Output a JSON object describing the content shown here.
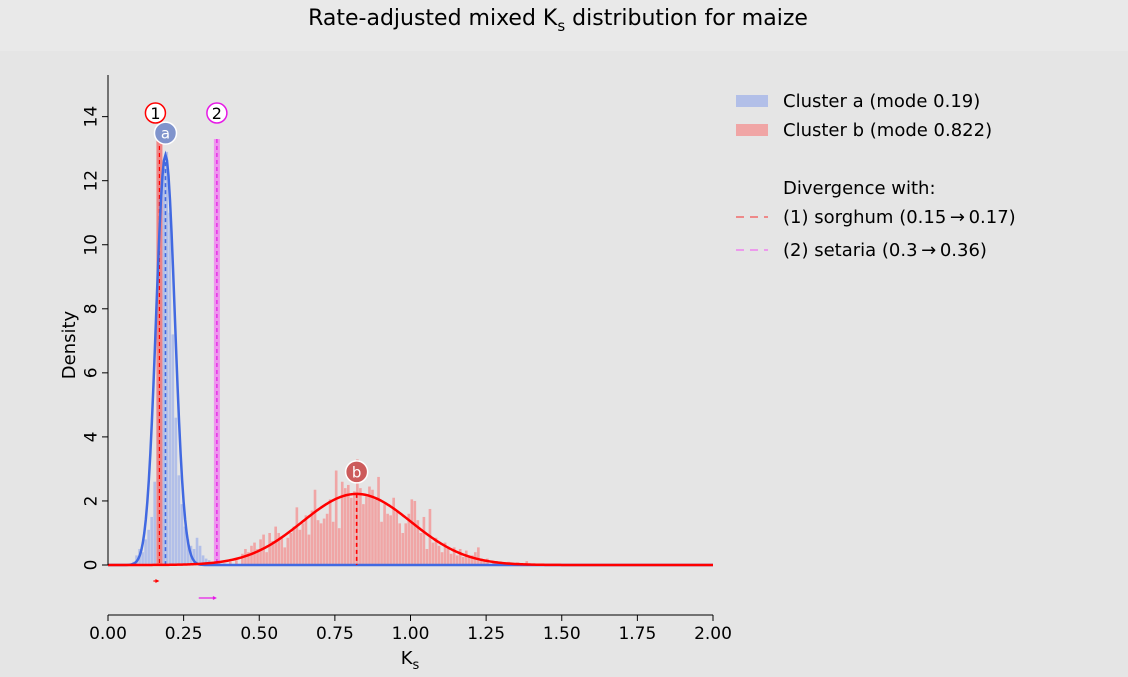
{
  "chart_data": {
    "type": "histogram",
    "title": {
      "main": "Rate-adjusted mixed K",
      "sub": "s",
      "rest": " distribution for maize"
    },
    "xlabel": {
      "main": "K",
      "sub": "s"
    },
    "ylabel": "Density",
    "xlim": [
      0,
      2
    ],
    "ylim": [
      0,
      15.3
    ],
    "xticks": [
      "0.00",
      "0.25",
      "0.50",
      "0.75",
      "1.00",
      "1.25",
      "1.50",
      "1.75",
      "2.00"
    ],
    "yticks": [
      "0",
      "2",
      "4",
      "6",
      "8",
      "10",
      "12",
      "14"
    ],
    "grid": false,
    "legend_position": "right-outside",
    "clusters": [
      {
        "id": "a",
        "legend_label": "Cluster a (mode 0.19)",
        "mode": 0.19,
        "curve_color": "#4169e1",
        "fill_color": "#b2bfe8",
        "marker_color": "#8094cc",
        "curve": {
          "mean": 0.19,
          "sd": 0.031,
          "peak": 12.8
        },
        "histogram": {
          "bin_width": 0.01,
          "bins": [
            [
              0.08,
              0.1
            ],
            [
              0.09,
              0.3
            ],
            [
              0.1,
              0.5
            ],
            [
              0.11,
              0.4
            ],
            [
              0.12,
              0.8
            ],
            [
              0.13,
              1.1
            ],
            [
              0.14,
              1.5
            ],
            [
              0.15,
              2.6
            ],
            [
              0.16,
              5.8
            ],
            [
              0.17,
              10.0
            ],
            [
              0.18,
              12.4
            ],
            [
              0.19,
              12.9
            ],
            [
              0.2,
              11.0
            ],
            [
              0.21,
              7.2
            ],
            [
              0.22,
              4.6
            ],
            [
              0.23,
              2.8
            ],
            [
              0.24,
              1.9
            ],
            [
              0.25,
              1.2
            ],
            [
              0.26,
              0.8
            ],
            [
              0.27,
              0.6
            ],
            [
              0.28,
              0.5
            ],
            [
              0.29,
              0.85
            ],
            [
              0.3,
              0.6
            ],
            [
              0.31,
              0.3
            ],
            [
              0.32,
              0.2
            ],
            [
              0.33,
              0.15
            ],
            [
              0.34,
              0.1
            ]
          ]
        }
      },
      {
        "id": "b",
        "legend_label": "Cluster b (mode 0.822)",
        "mode": 0.822,
        "curve_color": "#ff0000",
        "fill_color": "#f0a5a5",
        "marker_color": "#cc5b5b",
        "curve": {
          "mean": 0.822,
          "sd": 0.18,
          "peak": 2.22
        },
        "histogram": {
          "bin_width": 0.01,
          "bins": [
            [
              0.38,
              0.05
            ],
            [
              0.4,
              0.1
            ],
            [
              0.42,
              0.15
            ],
            [
              0.44,
              0.35
            ],
            [
              0.45,
              0.5
            ],
            [
              0.46,
              0.4
            ],
            [
              0.47,
              0.6
            ],
            [
              0.48,
              0.7
            ],
            [
              0.49,
              0.5
            ],
            [
              0.5,
              0.8
            ],
            [
              0.51,
              0.95
            ],
            [
              0.52,
              0.4
            ],
            [
              0.53,
              1.0
            ],
            [
              0.54,
              0.75
            ],
            [
              0.55,
              1.2
            ],
            [
              0.56,
              1.0
            ],
            [
              0.57,
              0.9
            ],
            [
              0.58,
              0.55
            ],
            [
              0.59,
              0.85
            ],
            [
              0.6,
              1.0
            ],
            [
              0.61,
              1.2
            ],
            [
              0.62,
              1.8
            ],
            [
              0.63,
              1.1
            ],
            [
              0.64,
              1.3
            ],
            [
              0.65,
              1.55
            ],
            [
              0.66,
              0.95
            ],
            [
              0.67,
              1.7
            ],
            [
              0.68,
              2.35
            ],
            [
              0.69,
              1.4
            ],
            [
              0.7,
              1.3
            ],
            [
              0.71,
              1.45
            ],
            [
              0.72,
              1.6
            ],
            [
              0.73,
              2.05
            ],
            [
              0.74,
              1.35
            ],
            [
              0.75,
              2.95
            ],
            [
              0.76,
              1.15
            ],
            [
              0.77,
              2.6
            ],
            [
              0.78,
              2.4
            ],
            [
              0.79,
              2.5
            ],
            [
              0.8,
              2.1
            ],
            [
              0.81,
              2.3
            ],
            [
              0.82,
              3.3
            ],
            [
              0.83,
              2.4
            ],
            [
              0.84,
              1.9
            ],
            [
              0.85,
              2.15
            ],
            [
              0.86,
              2.45
            ],
            [
              0.87,
              2.35
            ],
            [
              0.88,
              2.05
            ],
            [
              0.89,
              2.75
            ],
            [
              0.9,
              1.35
            ],
            [
              0.91,
              1.9
            ],
            [
              0.92,
              1.6
            ],
            [
              0.93,
              1.55
            ],
            [
              0.94,
              2.1
            ],
            [
              0.95,
              1.65
            ],
            [
              0.96,
              1.3
            ],
            [
              0.97,
              1.0
            ],
            [
              0.98,
              1.3
            ],
            [
              0.99,
              1.6
            ],
            [
              1.0,
              2.05
            ],
            [
              1.01,
              2.0
            ],
            [
              1.02,
              1.4
            ],
            [
              1.03,
              1.0
            ],
            [
              1.04,
              1.5
            ],
            [
              1.05,
              0.5
            ],
            [
              1.06,
              1.75
            ],
            [
              1.07,
              0.7
            ],
            [
              1.08,
              0.85
            ],
            [
              1.09,
              0.6
            ],
            [
              1.1,
              0.4
            ],
            [
              1.11,
              0.7
            ],
            [
              1.12,
              0.5
            ],
            [
              1.13,
              0.35
            ],
            [
              1.14,
              0.55
            ],
            [
              1.15,
              0.3
            ],
            [
              1.16,
              0.5
            ],
            [
              1.17,
              0.25
            ],
            [
              1.18,
              0.45
            ],
            [
              1.19,
              0.3
            ],
            [
              1.2,
              0.3
            ],
            [
              1.21,
              0.4
            ],
            [
              1.22,
              0.55
            ],
            [
              1.23,
              0.2
            ],
            [
              1.24,
              0.15
            ],
            [
              1.25,
              0.2
            ],
            [
              1.27,
              0.1
            ],
            [
              1.28,
              0.12
            ],
            [
              1.3,
              0.05
            ],
            [
              1.32,
              0.1
            ],
            [
              1.35,
              0.08
            ],
            [
              1.38,
              0.12
            ]
          ]
        }
      }
    ],
    "divergence": {
      "heading": "Divergence with:",
      "items": [
        {
          "marker": "1",
          "label": "(1) sorghum (0.15 → 0.17)",
          "from": 0.15,
          "to": 0.17,
          "color": "#ff0000",
          "bar_color": "#f08080",
          "legend_color": "#f26b6b"
        },
        {
          "marker": "2",
          "label": "(2) setaria (0.3 → 0.36)",
          "from": 0.3,
          "to": 0.36,
          "color": "#e619e6",
          "bar_color": "#ee90ee",
          "legend_color": "#ee82ee"
        }
      ]
    }
  }
}
